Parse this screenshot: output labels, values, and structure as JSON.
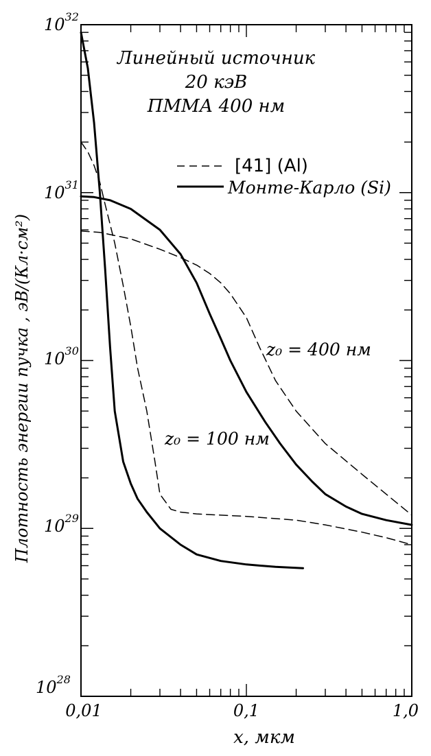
{
  "chart_data": {
    "type": "line",
    "title_lines": [
      "Линейный источник",
      "20 кэВ",
      "ПММА  400 нм"
    ],
    "xlabel": "x, мкм",
    "ylabel": "Плотность энергии пучка , эВ/(Кл·см²)",
    "x_scale": "log",
    "y_scale": "log",
    "xlim": [
      0.01,
      1.0
    ],
    "ylim": [
      1e+28,
      1e+32
    ],
    "x_ticks": [
      {
        "value": 0.01,
        "label": "0,01"
      },
      {
        "value": 0.1,
        "label": "0,1"
      },
      {
        "value": 1.0,
        "label": "1,0"
      }
    ],
    "y_ticks": [
      {
        "value": 1e+32,
        "mantissa": "10",
        "exp": "32"
      },
      {
        "value": 1e+31,
        "mantissa": "10",
        "exp": "31"
      },
      {
        "value": 1e+30,
        "mantissa": "10",
        "exp": "30"
      },
      {
        "value": 1e+29,
        "mantissa": "10",
        "exp": "29"
      },
      {
        "value": 1e+28,
        "mantissa": "10",
        "exp": "28"
      }
    ],
    "grid": false,
    "legend_position": "top-right",
    "legend": [
      {
        "label": "[41]  (Al)",
        "style": "dashed"
      },
      {
        "label": "Монте-Карло (Si)",
        "style": "solid"
      }
    ],
    "annotations": [
      {
        "label": "z₀ = 400 нм",
        "x": 0.11,
        "y": 8.5e+29
      },
      {
        "label": "z₀ = 100 нм",
        "x": 0.0225,
        "y": 2.8e+29
      }
    ],
    "series": [
      {
        "style": "solid",
        "z0": "400 нм",
        "x": [
          0.01,
          0.012,
          0.015,
          0.02,
          0.03,
          0.04,
          0.05,
          0.06,
          0.07,
          0.08,
          0.1,
          0.13,
          0.16,
          0.2,
          0.25,
          0.3,
          0.4,
          0.5,
          0.7,
          1.0
        ],
        "y": [
          9.5e+30,
          9.4e+30,
          9e+30,
          8e+30,
          6e+30,
          4.3e+30,
          2.9e+30,
          1.9e+30,
          1.35e+30,
          1e+30,
          6.5e+29,
          4.3e+29,
          3.2e+29,
          2.4e+29,
          1.9e+29,
          1.6e+29,
          1.35e+29,
          1.22e+29,
          1.12e+29,
          1.05e+29
        ]
      },
      {
        "style": "dashed",
        "z0": "400 нм",
        "x": [
          0.01,
          0.013,
          0.02,
          0.03,
          0.04,
          0.05,
          0.06,
          0.07,
          0.08,
          0.1,
          0.12,
          0.15,
          0.2,
          0.3,
          0.5,
          0.7,
          1.0
        ],
        "y": [
          5.9e+30,
          5.8e+30,
          5.3e+30,
          4.6e+30,
          4.1e+30,
          3.7e+30,
          3.3e+30,
          2.9e+30,
          2.5e+30,
          1.8e+30,
          1.2e+30,
          7.6e+29,
          5e+29,
          3.2e+29,
          2.1e+29,
          1.6e+29,
          1.2e+29
        ]
      },
      {
        "style": "solid",
        "z0": "100 нм",
        "x": [
          0.01,
          0.011,
          0.012,
          0.013,
          0.014,
          0.015,
          0.016,
          0.018,
          0.02,
          0.022,
          0.025,
          0.03,
          0.04,
          0.05,
          0.07,
          0.1,
          0.15,
          0.22
        ],
        "y": [
          9e+31,
          5.5e+31,
          2.6e+31,
          1e+31,
          3.5e+30,
          1.2e+30,
          5e+29,
          2.5e+29,
          1.85e+29,
          1.5e+29,
          1.25e+29,
          1e+29,
          8e+28,
          7e+28,
          6.4e+28,
          6.1e+28,
          5.9e+28,
          5.8e+28
        ]
      },
      {
        "style": "dashed",
        "z0": "100 нм",
        "x": [
          0.01,
          0.011,
          0.012,
          0.013,
          0.014,
          0.016,
          0.018,
          0.02,
          0.022,
          0.025,
          0.028,
          0.03,
          0.035,
          0.04,
          0.05,
          0.07,
          0.1,
          0.2,
          0.3,
          0.5,
          0.7,
          1.0
        ],
        "y": [
          2e+31,
          1.75e+31,
          1.45e+31,
          1.15e+31,
          8.5e+30,
          5e+30,
          2.8e+30,
          1.6e+30,
          9e+29,
          5e+29,
          2.5e+29,
          1.6e+29,
          1.3e+29,
          1.25e+29,
          1.22e+29,
          1.2e+29,
          1.18e+29,
          1.12e+29,
          1.05e+29,
          9.5e+28,
          8.8e+28,
          8e+28
        ]
      }
    ]
  }
}
